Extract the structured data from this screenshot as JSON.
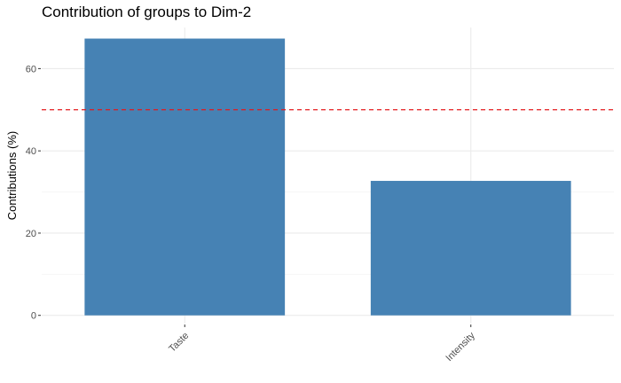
{
  "chart_data": {
    "type": "bar",
    "title": "Contribution of groups to Dim-2",
    "xlabel": "",
    "ylabel": "Contributions (%)",
    "categories": [
      "Taste",
      "Intensity"
    ],
    "values": [
      67.3,
      32.7
    ],
    "ylim": [
      -2,
      70
    ],
    "yticks": [
      0,
      20,
      40,
      60
    ],
    "reference_line": {
      "value": 50,
      "color": "#e41a1c",
      "style": "dashed"
    },
    "bar_color": "#4682b4",
    "grid": true,
    "legend": "none"
  }
}
